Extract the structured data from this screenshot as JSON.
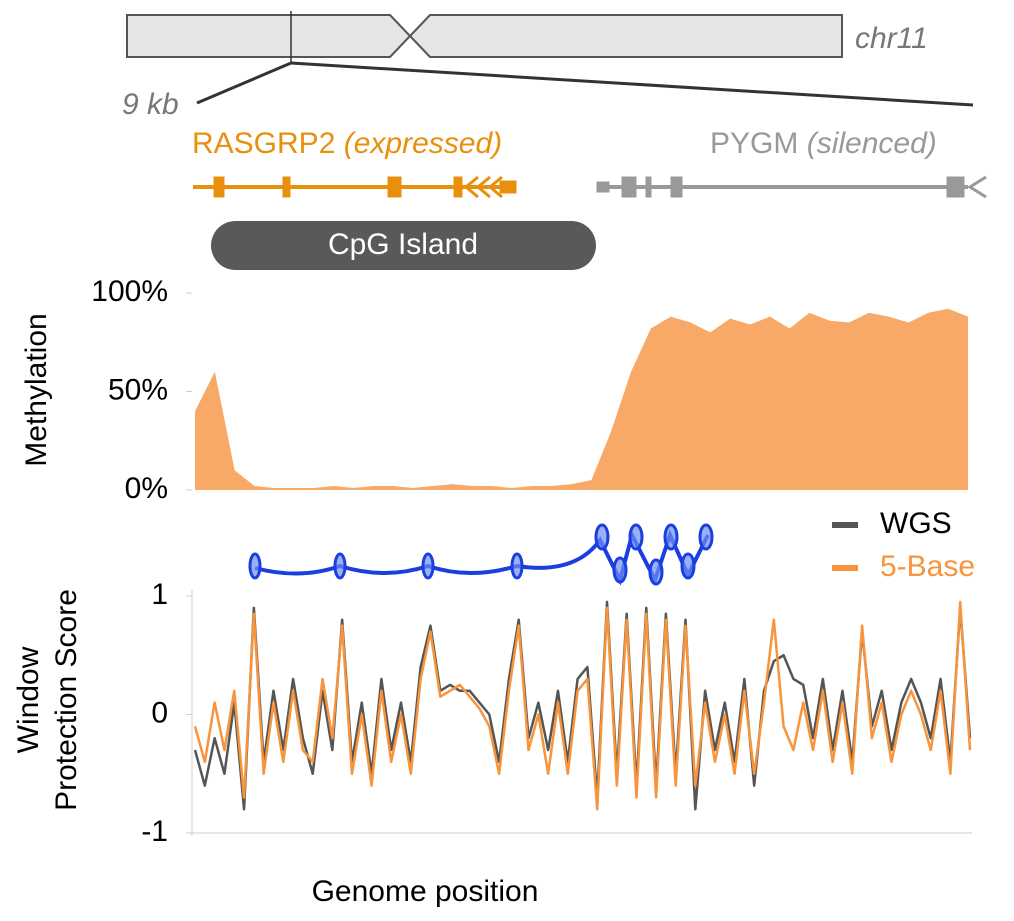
{
  "ideogram": {
    "label": "chr11",
    "scale_label": "9 kb"
  },
  "genes": [
    {
      "name": "RASGRP2",
      "note": "(expressed)",
      "color": "#e8900c"
    },
    {
      "name": "PYGM",
      "note": "(silenced)",
      "color": "#999999"
    }
  ],
  "cpg_island": "CpG Island",
  "xlabel": "Genome position",
  "chart_data": [
    {
      "type": "area",
      "ylabel": "Methylation",
      "color": "#f9a967",
      "ylim": [
        0,
        100
      ],
      "yticks": [
        {
          "value": 0,
          "label": "0%"
        },
        {
          "value": 50,
          "label": "50%"
        },
        {
          "value": 100,
          "label": "100%"
        }
      ],
      "values": [
        40,
        60,
        10,
        2,
        1,
        1,
        1,
        2,
        1,
        2,
        2,
        1,
        2,
        3,
        2,
        2,
        1,
        2,
        2,
        3,
        5,
        30,
        60,
        82,
        88,
        85,
        80,
        87,
        84,
        88,
        82,
        90,
        86,
        85,
        90,
        88,
        85,
        90,
        92,
        88
      ]
    },
    {
      "type": "line",
      "ylabel": [
        "Window",
        "Protection Score"
      ],
      "ylim": [
        -1,
        1
      ],
      "yticks": [
        -1,
        0,
        1
      ],
      "legend": "upper right",
      "series": [
        {
          "name": "WGS",
          "color": "#555555",
          "values": [
            -0.3,
            -0.6,
            -0.2,
            -0.5,
            0.1,
            -0.8,
            0.9,
            -0.4,
            0.2,
            -0.3,
            0.3,
            -0.2,
            -0.5,
            0.2,
            -0.3,
            0.8,
            -0.4,
            0.1,
            -0.5,
            0.3,
            -0.3,
            0.1,
            -0.4,
            0.4,
            0.75,
            0.2,
            0.25,
            0.2,
            0.2,
            0.1,
            0.0,
            -0.4,
            0.3,
            0.8,
            -0.2,
            0.1,
            -0.3,
            0.2,
            -0.4,
            0.3,
            0.4,
            -0.7,
            0.95,
            -0.5,
            0.85,
            -0.6,
            0.9,
            -0.6,
            0.85,
            -0.5,
            0.8,
            -0.8,
            0.2,
            -0.3,
            0.1,
            -0.4,
            0.3,
            -0.6,
            0.2,
            0.45,
            0.5,
            0.3,
            0.25,
            -0.2,
            0.3,
            -0.3,
            0.2,
            -0.4,
            0.7,
            -0.1,
            0.2,
            -0.3,
            0.1,
            0.3,
            0.1,
            -0.2,
            0.3,
            -0.4,
            0.9,
            -0.2
          ]
        },
        {
          "name": "5-Base",
          "color": "#f7943c",
          "values": [
            -0.1,
            -0.4,
            0.1,
            -0.3,
            0.2,
            -0.7,
            0.85,
            -0.5,
            0.1,
            -0.4,
            0.2,
            -0.3,
            -0.4,
            0.3,
            -0.2,
            0.75,
            -0.5,
            0.0,
            -0.6,
            0.2,
            -0.4,
            0.0,
            -0.5,
            0.3,
            0.7,
            0.15,
            0.2,
            0.25,
            0.15,
            0.05,
            -0.1,
            -0.5,
            0.2,
            0.75,
            -0.3,
            0.0,
            -0.5,
            0.1,
            -0.5,
            0.2,
            0.3,
            -0.8,
            0.9,
            -0.6,
            0.8,
            -0.7,
            0.85,
            -0.7,
            0.8,
            -0.6,
            0.75,
            -0.6,
            0.1,
            -0.4,
            0.0,
            -0.5,
            0.2,
            -0.5,
            0.1,
            0.8,
            -0.1,
            -0.3,
            0.1,
            -0.3,
            0.2,
            -0.4,
            0.1,
            -0.5,
            0.75,
            -0.2,
            0.1,
            -0.4,
            0.0,
            0.2,
            0.0,
            -0.3,
            0.2,
            -0.5,
            0.95,
            -0.3
          ]
        }
      ]
    }
  ]
}
